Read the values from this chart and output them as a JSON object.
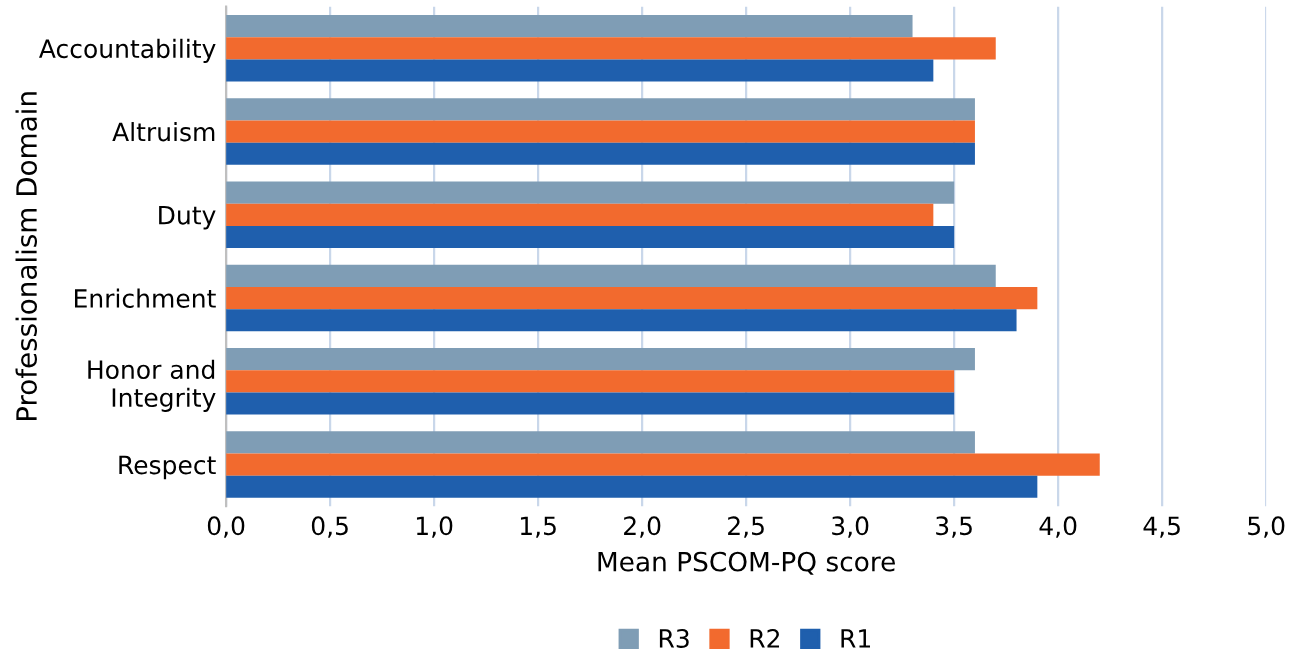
{
  "chart_data": {
    "type": "bar",
    "orientation": "horizontal",
    "ylabel": "Professionalism Domain",
    "xlabel": "Mean PSCOM-PQ score",
    "categories": [
      "Accountability",
      "Altruism",
      "Duty",
      "Enrichment",
      "Honor and\nIntegrity",
      "Respect"
    ],
    "series": [
      {
        "name": "R3",
        "color": "#7f9db5",
        "values": [
          3.3,
          3.6,
          3.5,
          3.7,
          3.6,
          3.6
        ]
      },
      {
        "name": "R2",
        "color": "#f26a2e",
        "values": [
          3.7,
          3.6,
          3.4,
          3.9,
          3.5,
          4.2
        ]
      },
      {
        "name": "R1",
        "color": "#1f5fad",
        "values": [
          3.4,
          3.6,
          3.5,
          3.8,
          3.5,
          3.9
        ]
      }
    ],
    "xlim": [
      0,
      5
    ],
    "xticks": [
      {
        "value": 0,
        "label": "0,0"
      },
      {
        "value": 0.5,
        "label": "0,5"
      },
      {
        "value": 1,
        "label": "1,0"
      },
      {
        "value": 1.5,
        "label": "1,5"
      },
      {
        "value": 2,
        "label": "2,0"
      },
      {
        "value": 2.5,
        "label": "2,5"
      },
      {
        "value": 3,
        "label": "3,0"
      },
      {
        "value": 3.5,
        "label": "3,5"
      },
      {
        "value": 4,
        "label": "4,0"
      },
      {
        "value": 4.5,
        "label": "4,5"
      },
      {
        "value": 5,
        "label": "5,0"
      }
    ],
    "grid": "x",
    "legend": "bottom"
  }
}
